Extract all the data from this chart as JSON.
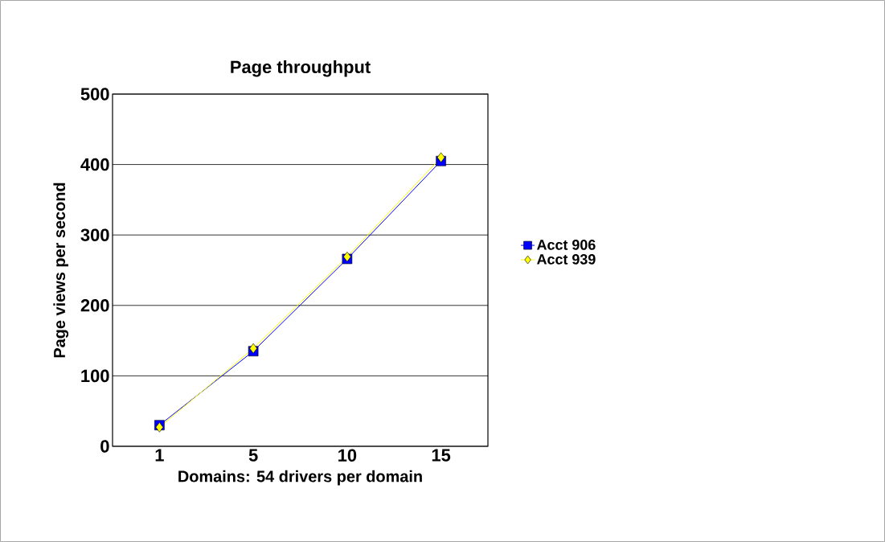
{
  "chart_data": {
    "type": "line",
    "title": "Page throughput",
    "xlabel": "Domains: 54 drivers per domain",
    "ylabel": "Page views per second",
    "categories": [
      "1",
      "5",
      "10",
      "15"
    ],
    "series": [
      {
        "name": "Acct 906",
        "color": "#0000ff",
        "marker": "square",
        "values": [
          30,
          135,
          266,
          405
        ]
      },
      {
        "name": "Acct 939",
        "color": "#ffff00",
        "marker": "diamond",
        "values": [
          27,
          139,
          269,
          410
        ]
      }
    ],
    "ylim": [
      0,
      500
    ],
    "yticks": [
      0,
      100,
      200,
      300,
      400,
      500
    ],
    "grid": "y",
    "legend": "right"
  }
}
